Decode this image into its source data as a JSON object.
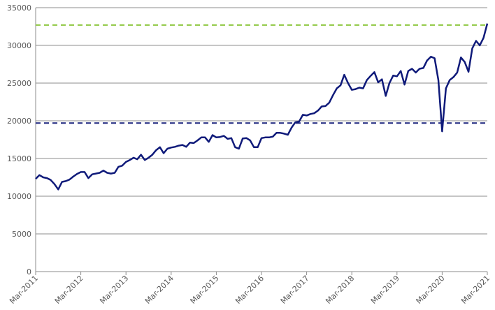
{
  "chart_data": {
    "type": "line",
    "x": [
      "Mar-2011",
      "Apr-2011",
      "May-2011",
      "Jun-2011",
      "Jul-2011",
      "Aug-2011",
      "Sep-2011",
      "Oct-2011",
      "Nov-2011",
      "Dec-2011",
      "Jan-2012",
      "Feb-2012",
      "Mar-2012",
      "Apr-2012",
      "May-2012",
      "Jun-2012",
      "Jul-2012",
      "Aug-2012",
      "Sep-2012",
      "Oct-2012",
      "Nov-2012",
      "Dec-2012",
      "Jan-2013",
      "Feb-2013",
      "Mar-2013",
      "Apr-2013",
      "May-2013",
      "Jun-2013",
      "Jul-2013",
      "Aug-2013",
      "Sep-2013",
      "Oct-2013",
      "Nov-2013",
      "Dec-2013",
      "Jan-2014",
      "Feb-2014",
      "Mar-2014",
      "Apr-2014",
      "May-2014",
      "Jun-2014",
      "Jul-2014",
      "Aug-2014",
      "Sep-2014",
      "Oct-2014",
      "Nov-2014",
      "Dec-2014",
      "Jan-2015",
      "Feb-2015",
      "Mar-2015",
      "Apr-2015",
      "May-2015",
      "Jun-2015",
      "Jul-2015",
      "Aug-2015",
      "Sep-2015",
      "Oct-2015",
      "Nov-2015",
      "Dec-2015",
      "Jan-2016",
      "Feb-2016",
      "Mar-2016",
      "Apr-2016",
      "May-2016",
      "Jun-2016",
      "Jul-2016",
      "Aug-2016",
      "Sep-2016",
      "Oct-2016",
      "Nov-2016",
      "Dec-2016",
      "Jan-2017",
      "Feb-2017",
      "Mar-2017",
      "Apr-2017",
      "May-2017",
      "Jun-2017",
      "Jul-2017",
      "Aug-2017",
      "Sep-2017",
      "Oct-2017",
      "Nov-2017",
      "Dec-2017",
      "Jan-2018",
      "Feb-2018",
      "Mar-2018",
      "Apr-2018",
      "May-2018",
      "Jun-2018",
      "Jul-2018",
      "Aug-2018",
      "Sep-2018",
      "Oct-2018",
      "Nov-2018",
      "Dec-2018",
      "Jan-2019",
      "Feb-2019",
      "Mar-2019",
      "Apr-2019",
      "May-2019",
      "Jun-2019",
      "Jul-2019",
      "Aug-2019",
      "Sep-2019",
      "Oct-2019",
      "Nov-2019",
      "Dec-2019",
      "Jan-2020",
      "Feb-2020",
      "Mar-2020",
      "Apr-2020",
      "May-2020",
      "Jun-2020",
      "Jul-2020",
      "Aug-2020",
      "Sep-2020",
      "Oct-2020",
      "Nov-2020",
      "Dec-2020",
      "Jan-2021",
      "Feb-2021",
      "Mar-2021"
    ],
    "values": [
      12300,
      12800,
      12500,
      12400,
      12150,
      11600,
      10900,
      11900,
      12000,
      12200,
      12600,
      12950,
      13200,
      13200,
      12400,
      12900,
      13000,
      13100,
      13400,
      13100,
      13000,
      13100,
      13900,
      14050,
      14550,
      14800,
      15100,
      14900,
      15500,
      14800,
      15100,
      15500,
      16100,
      16500,
      15700,
      16300,
      16450,
      16550,
      16700,
      16800,
      16550,
      17100,
      17050,
      17400,
      17800,
      17800,
      17200,
      18100,
      17800,
      17850,
      18000,
      17600,
      17700,
      16500,
      16300,
      17650,
      17700,
      17400,
      16500,
      16500,
      17700,
      17800,
      17800,
      17900,
      18400,
      18400,
      18300,
      18150,
      19100,
      19800,
      19900,
      20800,
      20700,
      20900,
      21000,
      21350,
      21900,
      21950,
      22400,
      23400,
      24300,
      24700,
      26100,
      25000,
      24100,
      24200,
      24400,
      24300,
      25400,
      25950,
      26450,
      25100,
      25500,
      23300,
      25000,
      26000,
      25900,
      26600,
      24800,
      26600,
      26900,
      26400,
      26900,
      27000,
      28000,
      28500,
      28300,
      25400,
      18600,
      24300,
      25400,
      25800,
      26400,
      28400,
      27800,
      26500,
      29600,
      30600,
      30000,
      31000,
      32900
    ],
    "color": "#0f1a7a",
    "xticks": [
      "Mar-2011",
      "Mar-2012",
      "Mar-2013",
      "Mar-2014",
      "Mar-2015",
      "Mar-2016",
      "Mar-2017",
      "Mar-2018",
      "Mar-2019",
      "Mar-2020",
      "Mar-2021"
    ],
    "ylim": [
      0,
      35000
    ],
    "yticks": [
      0,
      5000,
      10000,
      15000,
      20000,
      25000,
      30000,
      35000
    ],
    "grid": true,
    "reference_lines": [
      {
        "value": 32700,
        "color": "#8dc63f"
      },
      {
        "value": 19700,
        "color": "#1a237e"
      }
    ]
  }
}
